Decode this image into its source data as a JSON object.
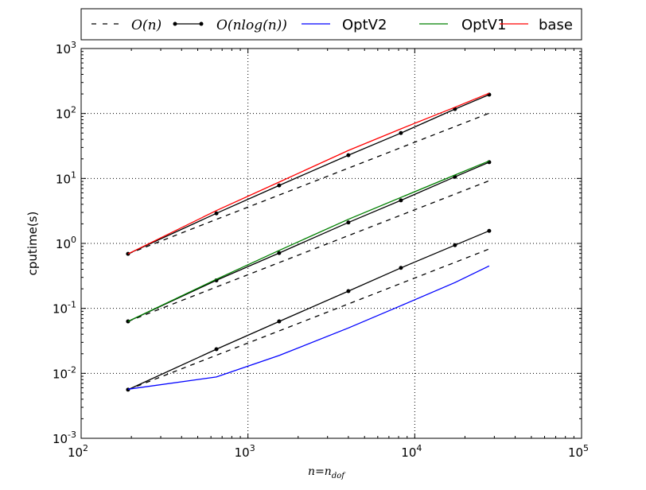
{
  "chart_data": {
    "type": "line",
    "xlabel": "n=n_dof",
    "xlabel_main": "n=n",
    "xlabel_sub": "dof",
    "ylabel": "cputime(s)",
    "xscale": "log",
    "yscale": "log",
    "xlim": [
      100,
      100000
    ],
    "ylim": [
      0.001,
      1000
    ],
    "grid": true,
    "legend_placement": "top (above plot)",
    "x_ticks": [
      {
        "base": "10",
        "exp": "2",
        "value": 100
      },
      {
        "base": "10",
        "exp": "3",
        "value": 1000
      },
      {
        "base": "10",
        "exp": "4",
        "value": 10000
      },
      {
        "base": "10",
        "exp": "5",
        "value": 100000
      }
    ],
    "y_ticks": [
      {
        "base": "10",
        "exp": "-3",
        "value": 0.001
      },
      {
        "base": "10",
        "exp": "-2",
        "value": 0.01
      },
      {
        "base": "10",
        "exp": "-1",
        "value": 0.1
      },
      {
        "base": "10",
        "exp": "0",
        "value": 1
      },
      {
        "base": "10",
        "exp": "1",
        "value": 10
      },
      {
        "base": "10",
        "exp": "2",
        "value": 100
      },
      {
        "base": "10",
        "exp": "3",
        "value": 1000
      }
    ],
    "legend": [
      {
        "label": "O(n)",
        "style": "dashed",
        "color": "#000000",
        "math": true
      },
      {
        "label": "O(nlog(n))",
        "style": "solid-dots",
        "color": "#000000",
        "math": true
      },
      {
        "label": "OptV2",
        "style": "solid",
        "color": "#0000ff",
        "math": false
      },
      {
        "label": "OptV1",
        "style": "solid",
        "color": "#008000",
        "math": false
      },
      {
        "label": "base",
        "style": "solid",
        "color": "#ff0000",
        "math": false
      }
    ],
    "x": [
      191,
      647,
      1538,
      4000,
      8260,
      17420,
      27940
    ],
    "series": [
      {
        "name": "base",
        "color": "#ff0000",
        "style": "solid",
        "values": [
          0.69,
          3.2,
          8.8,
          27,
          58,
          125,
          205
        ]
      },
      {
        "name": "OptV1",
        "color": "#008000",
        "style": "solid",
        "values": [
          0.063,
          0.28,
          0.78,
          2.35,
          5.1,
          11.3,
          18.6
        ]
      },
      {
        "name": "OptV2",
        "color": "#0000ff",
        "style": "solid",
        "values": [
          0.0057,
          0.0088,
          0.0188,
          0.05,
          0.11,
          0.25,
          0.45
        ]
      },
      {
        "name": "O(nlog(n)) base",
        "color": "#000000",
        "style": "solid-dots",
        "values": [
          0.69,
          2.9,
          7.8,
          22.8,
          50,
          117,
          195
        ]
      },
      {
        "name": "O(nlog(n)) OptV1",
        "color": "#000000",
        "style": "solid-dots",
        "values": [
          0.063,
          0.27,
          0.71,
          2.1,
          4.6,
          10.6,
          17.8
        ]
      },
      {
        "name": "O(nlog(n)) OptV2",
        "color": "#000000",
        "style": "solid-dots",
        "values": [
          0.0056,
          0.0235,
          0.063,
          0.184,
          0.42,
          0.94,
          1.56
        ]
      },
      {
        "name": "O(n) base",
        "color": "#000000",
        "style": "dashed",
        "values": [
          0.69,
          2.34,
          5.56,
          14.4,
          29.8,
          62.9,
          100.9
        ]
      },
      {
        "name": "O(n) OptV1",
        "color": "#000000",
        "style": "dashed",
        "values": [
          0.063,
          0.213,
          0.507,
          1.32,
          2.72,
          5.75,
          9.22
        ]
      },
      {
        "name": "O(n) OptV2",
        "color": "#000000",
        "style": "dashed",
        "values": [
          0.0056,
          0.019,
          0.045,
          0.117,
          0.242,
          0.511,
          0.82
        ]
      }
    ]
  }
}
